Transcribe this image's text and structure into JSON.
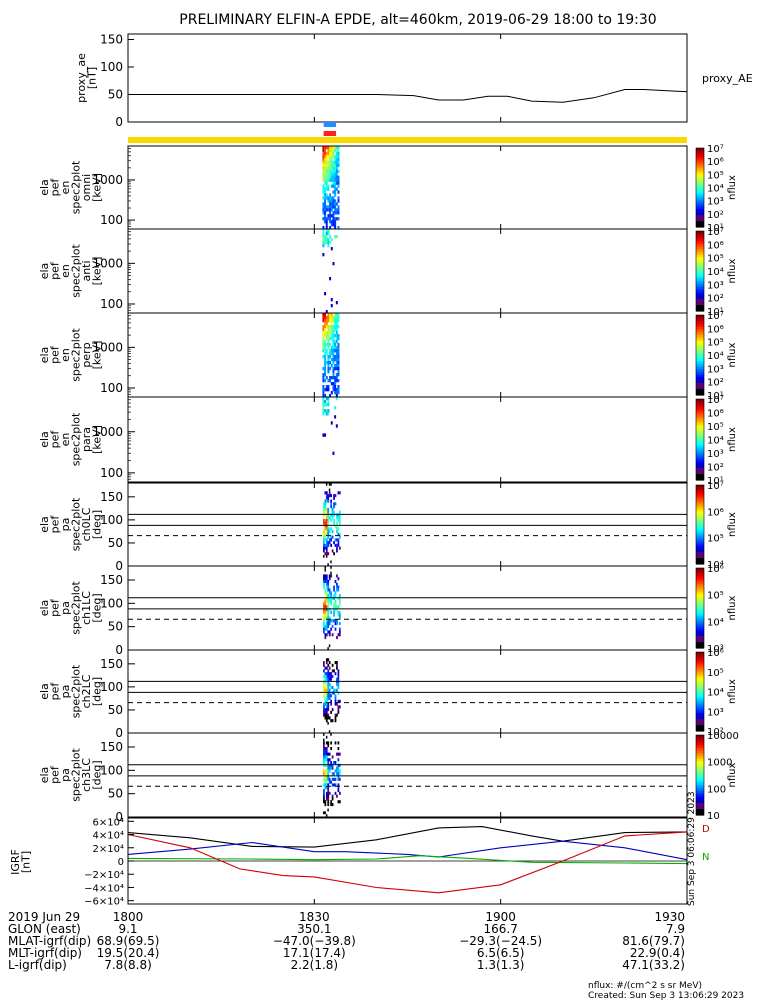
{
  "title": "PRELIMINARY ELFIN-A EPDE, alt=460km, 2019-06-29 18:00 to 19:30",
  "time_axis": {
    "start_min": 1080,
    "end_min": 1170,
    "ticks": [
      {
        "t": 1080,
        "label": "1800"
      },
      {
        "t": 1110,
        "label": "1830"
      },
      {
        "t": 1140,
        "label": "1900"
      },
      {
        "t": 1170,
        "label": "1930"
      }
    ],
    "date_label": "2019 Jun 29"
  },
  "colors": {
    "science_bar_blue": "#1e90ff",
    "science_bar_red": "#ff2020",
    "status_bar_yellow": "#ffd700",
    "bx": "#0000c0",
    "by": "#00b000",
    "bz": "#d00000",
    "btotal": "#000000"
  },
  "science_zone": {
    "start_min": 1111.5,
    "end_min": 1113.5
  },
  "ae_panel": {
    "ylabel": [
      "proxy_ae",
      "[nT]"
    ],
    "ylim": [
      0,
      160
    ],
    "yticks": [
      0,
      50,
      100,
      150
    ],
    "legend": "proxy_AE",
    "x": [
      1080,
      1100,
      1120,
      1126,
      1130,
      1134,
      1138,
      1141,
      1145,
      1150,
      1155,
      1160,
      1163,
      1170
    ],
    "y": [
      50,
      50,
      50,
      48,
      40,
      40,
      47,
      47,
      38,
      36,
      44,
      59,
      59,
      55
    ]
  },
  "energy_panels": [
    {
      "name": "omni",
      "ylabel": [
        "ela",
        "pef",
        "en",
        "spec2plot",
        "omni",
        "[keV]"
      ],
      "yticks": [
        {
          "v": 100,
          "label": "100"
        },
        {
          "v": 1000,
          "label": "1000"
        }
      ],
      "ylim": [
        60,
        7000
      ],
      "density": "high"
    },
    {
      "name": "anti",
      "ylabel": [
        "ela",
        "pef",
        "en",
        "spec2plot",
        "anti",
        "[keV]"
      ],
      "yticks": [
        {
          "v": 100,
          "label": "100"
        },
        {
          "v": 1000,
          "label": "1000"
        }
      ],
      "ylim": [
        60,
        7000
      ],
      "density": "low"
    },
    {
      "name": "perp",
      "ylabel": [
        "ela",
        "pef",
        "en",
        "spec2plot",
        "perp",
        "[keV]"
      ],
      "yticks": [
        {
          "v": 100,
          "label": "100"
        },
        {
          "v": 1000,
          "label": "1000"
        }
      ],
      "ylim": [
        60,
        7000
      ],
      "density": "high"
    },
    {
      "name": "para",
      "ylabel": [
        "ela",
        "pef",
        "en",
        "spec2plot",
        "para",
        "[keV]"
      ],
      "yticks": [
        {
          "v": 100,
          "label": "100"
        },
        {
          "v": 1000,
          "label": "1000"
        }
      ],
      "ylim": [
        60,
        7000
      ],
      "density": "low"
    }
  ],
  "energy_colorbar": {
    "labels": [
      "10⁷",
      "10⁶",
      "10⁵",
      "10⁴",
      "10³",
      "10²",
      "10¹"
    ],
    "title": "nflux"
  },
  "pa_panels": [
    {
      "name": "ch0LC",
      "ylabel": [
        "ela",
        "pef",
        "pa",
        "spec2plot",
        "ch0LC",
        "[deg]"
      ],
      "yticks": [
        0,
        50,
        100,
        150
      ],
      "ylim": [
        0,
        180
      ],
      "cb_labels": [
        "10⁷",
        "10⁶",
        "10⁵",
        "10⁴"
      ],
      "cb_title": "nflux"
    },
    {
      "name": "ch1LC",
      "ylabel": [
        "ela",
        "pef",
        "pa",
        "spec2plot",
        "ch1LC",
        "[deg]"
      ],
      "yticks": [
        0,
        50,
        100,
        150
      ],
      "ylim": [
        0,
        180
      ],
      "cb_labels": [
        "10⁶",
        "10⁵",
        "10⁴",
        "10³"
      ],
      "cb_title": "nflux"
    },
    {
      "name": "ch2LC",
      "ylabel": [
        "ela",
        "pef",
        "pa",
        "spec2plot",
        "ch2LC",
        "[deg]"
      ],
      "yticks": [
        0,
        50,
        100,
        150
      ],
      "ylim": [
        0,
        180
      ],
      "cb_labels": [
        "10⁶",
        "10⁵",
        "10⁴",
        "10³",
        "10²"
      ],
      "cb_title": "nflux"
    },
    {
      "name": "ch3LC",
      "ylabel": [
        "ela",
        "pef",
        "pa",
        "spec2plot",
        "ch3LC",
        "[deg]"
      ],
      "yticks": [
        0,
        50,
        100,
        150
      ],
      "ylim": [
        0,
        180
      ],
      "cb_labels": [
        "10000",
        "1000",
        "100",
        "10"
      ],
      "cb_title": "nflux"
    }
  ],
  "pa_reference_lines": {
    "solid": [
      112,
      88
    ],
    "dashed": [
      66
    ]
  },
  "igrf_panel": {
    "ylabel": [
      "IGRF",
      "[nT]"
    ],
    "ylim": [
      -65000,
      65000
    ],
    "yticks": [
      {
        "v": 60000,
        "label": "6×10⁴"
      },
      {
        "v": 40000,
        "label": "4×10⁴"
      },
      {
        "v": 20000,
        "label": "2×10⁴"
      },
      {
        "v": 0,
        "label": "0"
      },
      {
        "v": -20000,
        "label": "−2×10⁴"
      },
      {
        "v": -40000,
        "label": "−4×10⁴"
      },
      {
        "v": -60000,
        "label": "−6×10⁴"
      }
    ],
    "right_labels": [
      "D",
      "N"
    ],
    "side_text": "Sun Sep  3 06:06:29 2023",
    "series": [
      {
        "color": "#000000",
        "x": [
          1080,
          1090,
          1100,
          1110,
          1120,
          1130,
          1137,
          1145,
          1150,
          1160,
          1170
        ],
        "y": [
          43000,
          35000,
          22000,
          21000,
          32000,
          50000,
          52000,
          38000,
          30000,
          43000,
          44000
        ]
      },
      {
        "color": "#0000c0",
        "x": [
          1080,
          1090,
          1100,
          1110,
          1115,
          1125,
          1130,
          1140,
          1150,
          1160,
          1170
        ],
        "y": [
          10000,
          18000,
          28000,
          14000,
          14000,
          10000,
          6000,
          20000,
          30000,
          20000,
          2000
        ]
      },
      {
        "color": "#00b000",
        "x": [
          1080,
          1100,
          1110,
          1120,
          1127,
          1135,
          1145,
          1160,
          1170
        ],
        "y": [
          4000,
          3000,
          2000,
          3000,
          8000,
          4000,
          -2000,
          -3000,
          -4000
        ]
      },
      {
        "color": "#d00000",
        "x": [
          1080,
          1090,
          1098,
          1105,
          1110,
          1120,
          1130,
          1140,
          1150,
          1160,
          1170
        ],
        "y": [
          40000,
          20000,
          -12000,
          -22000,
          -24000,
          -40000,
          -48000,
          -36000,
          0,
          38000,
          44000
        ]
      }
    ]
  },
  "ephemeris": [
    {
      "label": "2019 Jun 29",
      "values": [
        "1800",
        "1830",
        "1900",
        "1930"
      ]
    },
    {
      "label": "GLON (east)",
      "values": [
        "9.1",
        "350.1",
        "166.7",
        "7.9"
      ]
    },
    {
      "label": "MLAT-igrf(dip)",
      "values": [
        "68.9(69.5)",
        "−47.0(−39.8)",
        "−29.3(−24.5)",
        "81.6(79.7)"
      ]
    },
    {
      "label": "MLT-igrf(dip)",
      "values": [
        "19.5(20.4)",
        "17.1(17.4)",
        "6.5(6.5)",
        "22.9(0.4)"
      ]
    },
    {
      "label": "L-igrf(dip)",
      "values": [
        "7.8(8.8)",
        "2.2(1.8)",
        "1.3(1.3)",
        "47.1(33.2)"
      ]
    }
  ],
  "footer": {
    "units": "nflux: #/(cm^2 s sr MeV)",
    "created": "Created: Sun Sep  3 13:06:29 2023"
  }
}
